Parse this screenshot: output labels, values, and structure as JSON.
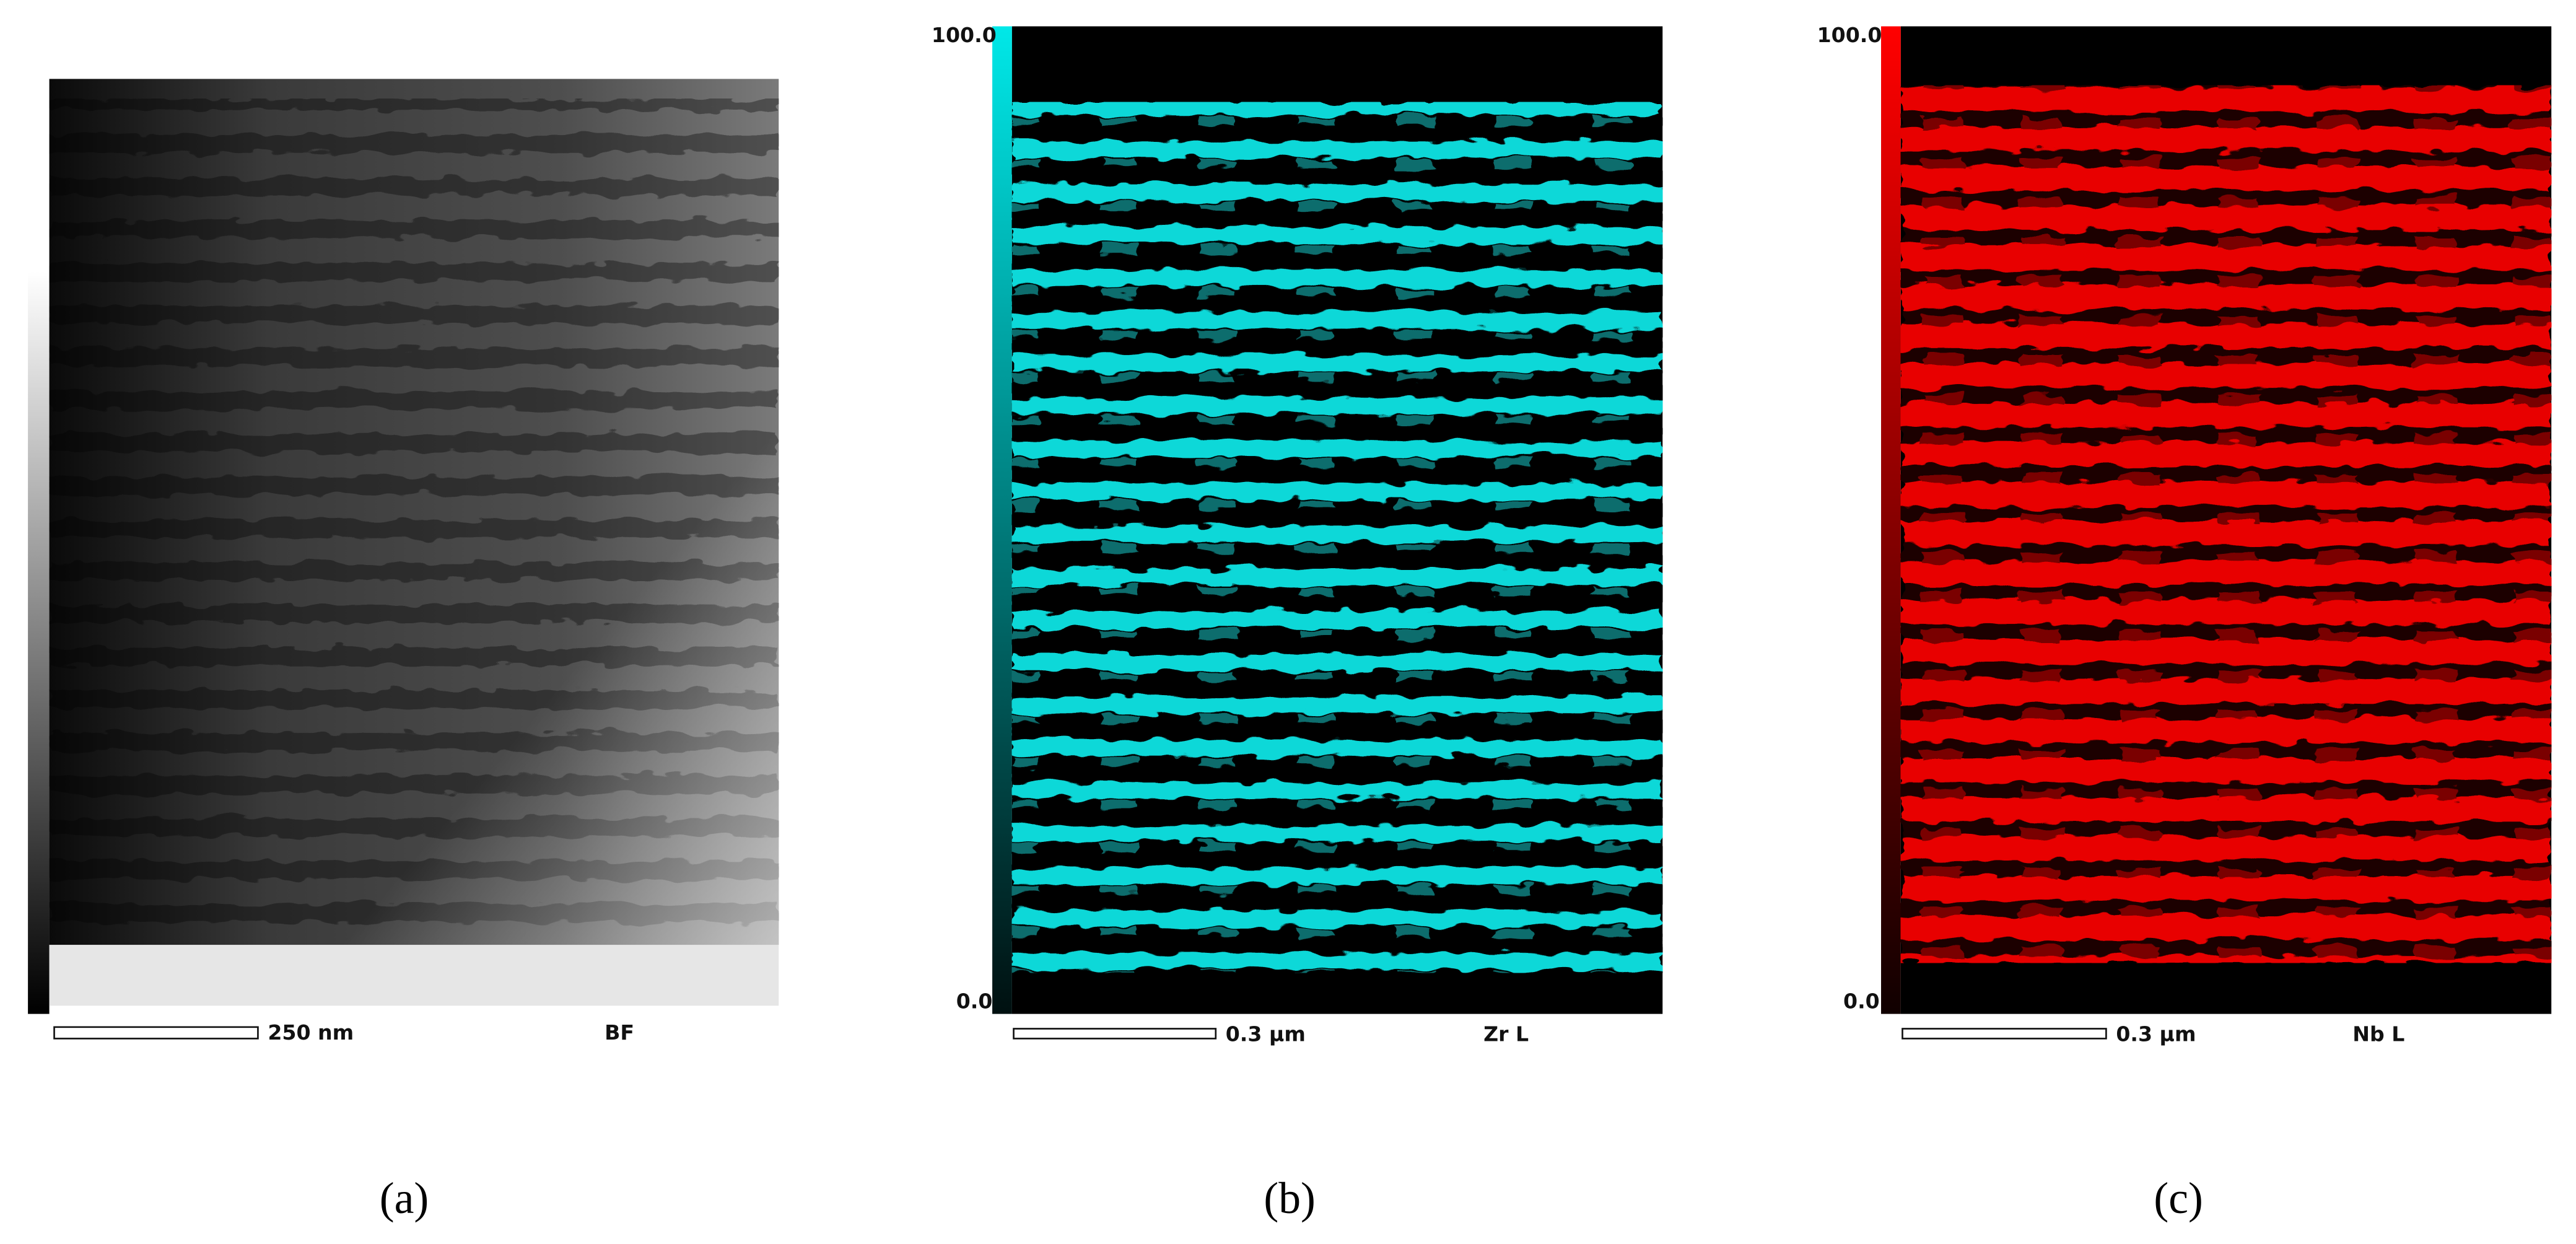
{
  "panels": [
    {
      "label": "(a)",
      "scale_bar": "250 nm",
      "signal": "BF"
    },
    {
      "label": "(b)",
      "colorbar_max": "100.0",
      "colorbar_min": "0.0",
      "scale_bar": "0.3 µm",
      "signal": "Zr L"
    },
    {
      "label": "(c)",
      "colorbar_max": "100.0",
      "colorbar_min": "0.0",
      "scale_bar": "0.3 µm",
      "signal": "Nb L"
    }
  ]
}
